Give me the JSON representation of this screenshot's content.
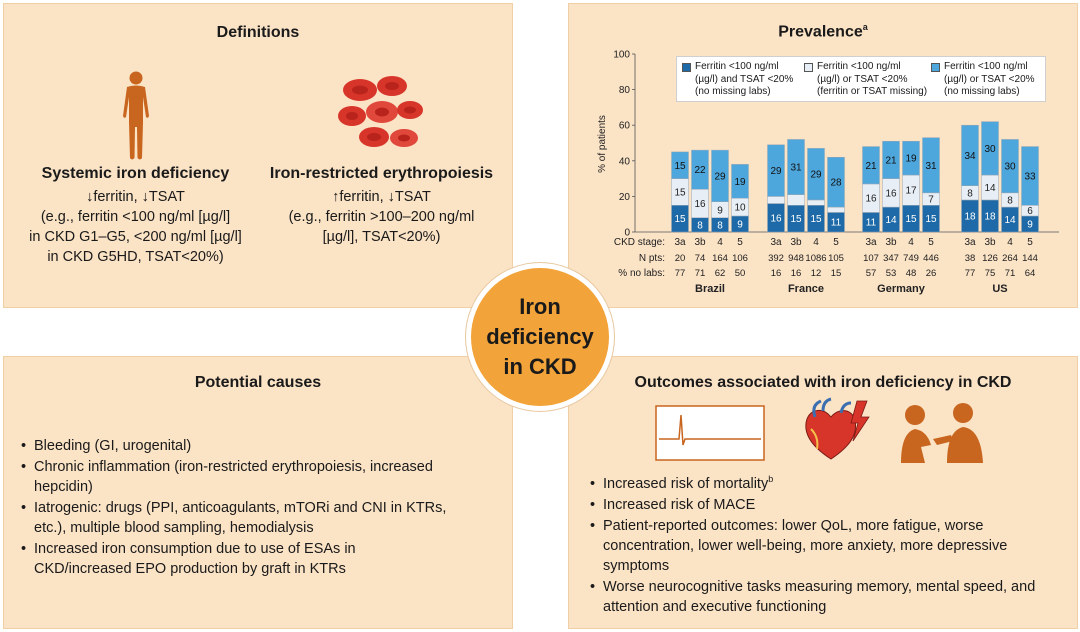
{
  "definitions": {
    "title": "Definitions",
    "systemic": {
      "heading": "Systemic iron deficiency",
      "lines": [
        "↓ferritin, ↓TSAT",
        "(e.g., ferritin <100 ng/ml [µg/l]",
        "in CKD G1–G5, <200 ng/ml [µg/l]",
        "in CKD G5HD, TSAT<20%)"
      ]
    },
    "restricted": {
      "heading": "Iron-restricted erythropoiesis",
      "lines": [
        "↑ferritin, ↓TSAT",
        "(e.g., ferritin >100–200 ng/ml",
        "[µg/l], TSAT<20%)"
      ]
    }
  },
  "prevalence": {
    "title": "Prevalence",
    "title_sup": "a"
  },
  "chart_data": {
    "type": "bar",
    "ylabel": "% of patients",
    "ylim": [
      0,
      100
    ],
    "yticks": [
      0,
      20,
      40,
      60,
      80,
      100
    ],
    "legend": [
      {
        "lines": [
          "Ferritin <100 ng/ml",
          "(µg/l) and TSAT <20%",
          "(no missing labs)"
        ],
        "color": "#1e6aa8"
      },
      {
        "lines": [
          "Ferritin <100 ng/ml",
          "(µg/l) or TSAT <20%",
          "(ferritin or TSAT missing)"
        ],
        "color": "#e8eef6"
      },
      {
        "lines": [
          "Ferritin <100 ng/ml",
          "(µg/l) or TSAT <20%",
          "(no missing labs)"
        ],
        "color": "#4da6dc"
      }
    ],
    "row_labels": {
      "stage": "CKD stage:",
      "npts": "N pts:",
      "nolabs": "% no labs:"
    },
    "groups": [
      {
        "name": "Brazil",
        "stages": [
          "3a",
          "3b",
          "4",
          "5"
        ],
        "npts": [
          "20",
          "74",
          "164",
          "106"
        ],
        "nolabs": [
          "77",
          "71",
          "62",
          "50"
        ],
        "series": {
          "dark": [
            15,
            8,
            8,
            9
          ],
          "white": [
            15,
            16,
            9,
            10
          ],
          "light": [
            15,
            22,
            29,
            19
          ]
        }
      },
      {
        "name": "France",
        "stages": [
          "3a",
          "3b",
          "4",
          "5"
        ],
        "npts": [
          "392",
          "948",
          "1086",
          "105"
        ],
        "nolabs": [
          "16",
          "16",
          "12",
          "15"
        ],
        "series": {
          "dark": [
            16,
            15,
            15,
            11
          ],
          "white": [
            4,
            6,
            3,
            3
          ],
          "light": [
            29,
            31,
            29,
            28
          ]
        }
      },
      {
        "name": "Germany",
        "stages": [
          "3a",
          "3b",
          "4",
          "5"
        ],
        "npts": [
          "107",
          "347",
          "749",
          "446"
        ],
        "nolabs": [
          "57",
          "53",
          "48",
          "26"
        ],
        "series": {
          "dark": [
            11,
            14,
            15,
            15
          ],
          "white": [
            16,
            16,
            17,
            7
          ],
          "light": [
            21,
            21,
            19,
            31
          ]
        }
      },
      {
        "name": "US",
        "stages": [
          "3a",
          "3b",
          "4",
          "5"
        ],
        "npts": [
          "38",
          "126",
          "264",
          "144"
        ],
        "nolabs": [
          "77",
          "75",
          "71",
          "64"
        ],
        "series": {
          "dark": [
            18,
            18,
            14,
            9
          ],
          "white": [
            8,
            14,
            8,
            6
          ],
          "light": [
            34,
            30,
            30,
            33
          ]
        }
      }
    ],
    "hidden_labels": {
      "white": [
        false,
        false,
        false,
        false,
        true,
        true,
        true,
        true,
        false,
        false,
        false,
        false,
        false,
        false,
        false,
        false
      ]
    }
  },
  "center": {
    "lines": [
      "Iron",
      "deficiency",
      "in CKD"
    ]
  },
  "causes": {
    "title": "Potential causes",
    "items": [
      "Bleeding (GI, urogenital)",
      "Chronic inflammation (iron-restricted erythropoiesis, increased hepcidin)",
      "Iatrogenic: drugs (PPI, anticoagulants, mTORi and CNI in KTRs, etc.), multiple blood sampling, hemodialysis",
      "Increased iron consumption due to use of ESAs in CKD/increased EPO production by graft in KTRs"
    ]
  },
  "outcomes": {
    "title": "Outcomes associated with iron deficiency in CKD",
    "item_mortality": "Increased risk of mortality",
    "item_mortality_sup": "b",
    "items_rest": [
      "Increased risk of MACE",
      "Patient-reported outcomes: lower QoL, more fatigue, worse concentration, lower well-being, more anxiety, more depressive symptoms",
      "Worse neurocognitive tasks measuring memory, mental speed, and attention and executive functioning"
    ]
  },
  "colors": {
    "panel": "#fbe3c6",
    "circle": "#f2a33a",
    "dark": "#1e6aa8",
    "light": "#4da6dc",
    "white": "#e8eef6",
    "icon": "#c8651e",
    "rbc": "#d8352a"
  }
}
